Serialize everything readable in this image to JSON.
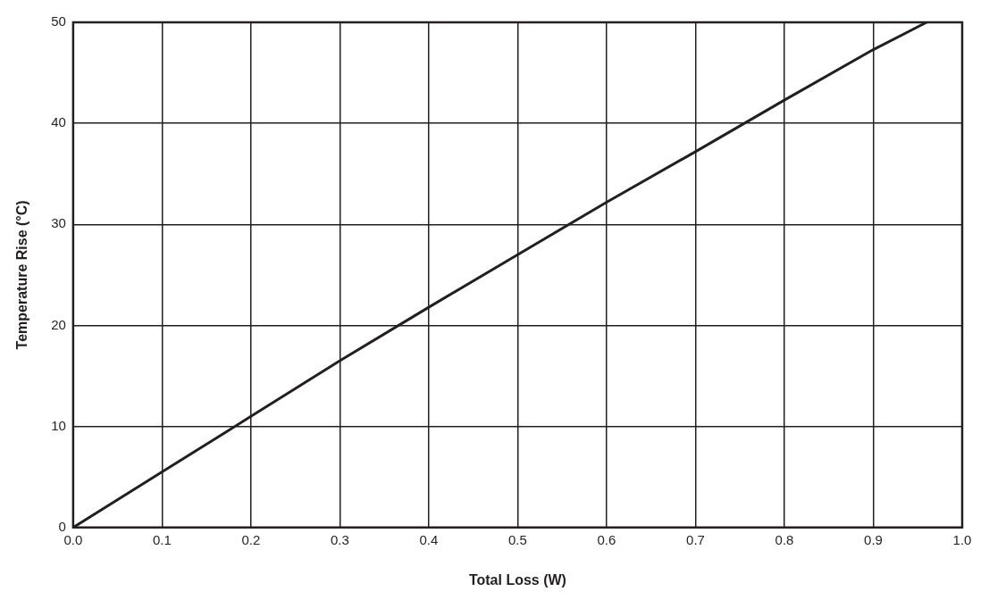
{
  "chart_data": {
    "type": "line",
    "xlabel": "Total Loss (W)",
    "ylabel": "Temperature Rise (°C)",
    "x": [
      0,
      0.1,
      0.2,
      0.3,
      0.4,
      0.5,
      0.6,
      0.7,
      0.8,
      0.9,
      0.96
    ],
    "series": [
      {
        "color": "#231f20",
        "values": [
          0,
          5.5,
          11,
          16.5,
          21.8,
          27,
          32.2,
          37.2,
          42.3,
          47.3,
          50
        ]
      }
    ],
    "xlim": [
      0,
      1
    ],
    "xticks": [
      {
        "value": 0,
        "label": "0.0"
      },
      {
        "value": 0.1,
        "label": "0.1"
      },
      {
        "value": 0.2,
        "label": "0.2"
      },
      {
        "value": 0.3,
        "label": "0.3"
      },
      {
        "value": 0.4,
        "label": "0.4"
      },
      {
        "value": 0.5,
        "label": "0.5"
      },
      {
        "value": 0.6,
        "label": "0.6"
      },
      {
        "value": 0.7,
        "label": "0.7"
      },
      {
        "value": 0.8,
        "label": "0.8"
      },
      {
        "value": 0.9,
        "label": "0.9"
      },
      {
        "value": 1,
        "label": "1.0"
      }
    ],
    "ylim": [
      0,
      50
    ],
    "yticks": [
      0,
      10,
      20,
      30,
      40,
      50
    ],
    "grid": true,
    "legend": false,
    "marker": "none",
    "line_style": "solid"
  }
}
